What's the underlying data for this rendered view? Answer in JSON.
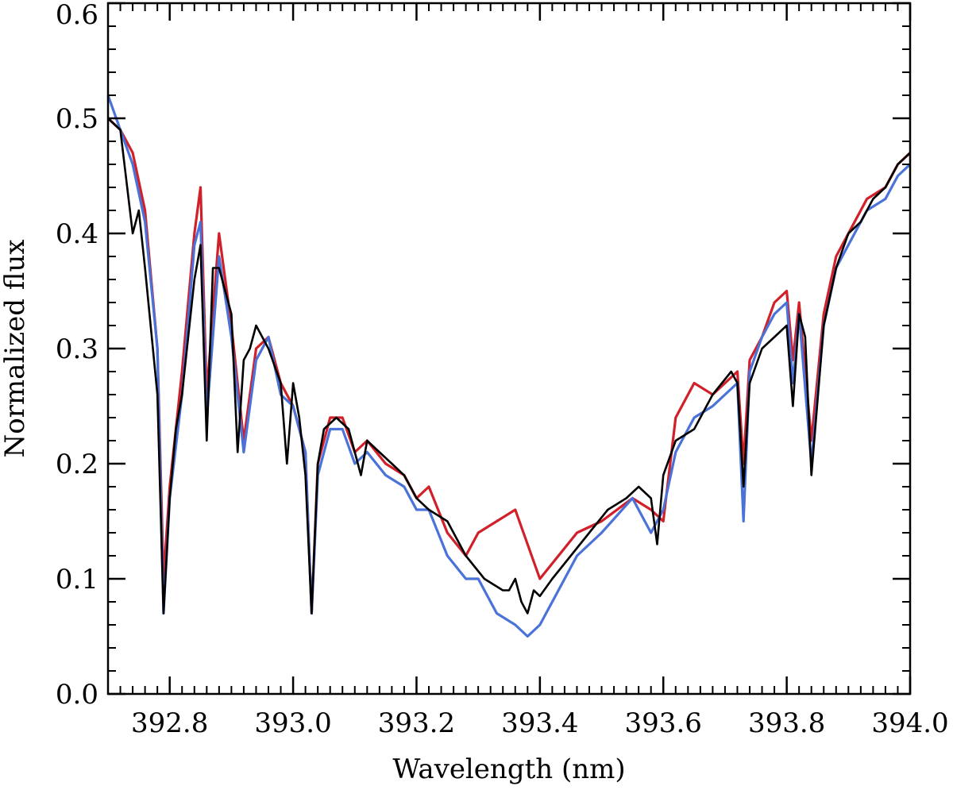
{
  "chart_data": {
    "type": "line",
    "xlabel": "Wavelength (nm)",
    "ylabel": "Normalized flux",
    "xlim": [
      392.7,
      394.0
    ],
    "ylim": [
      0.0,
      0.6
    ],
    "x_ticks": [
      "392.8",
      "393.0",
      "393.2",
      "393.4",
      "393.6",
      "393.8",
      "394.0"
    ],
    "x_tick_values": [
      392.8,
      393.0,
      393.2,
      393.4,
      393.6,
      393.8,
      394.0
    ],
    "y_ticks": [
      "0.0",
      "0.1",
      "0.2",
      "0.3",
      "0.4",
      "0.5",
      "0.6"
    ],
    "y_tick_values": [
      0.0,
      0.1,
      0.2,
      0.3,
      0.4,
      0.5,
      0.6
    ],
    "x_minor_step": 0.02,
    "y_minor_step": 0.02,
    "grid": false,
    "series": [
      {
        "color": "#d0202a",
        "style": "noisy observed spectrum",
        "x": [
          392.7,
          392.72,
          392.74,
          392.76,
          392.78,
          392.79,
          392.8,
          392.82,
          392.84,
          392.85,
          392.86,
          392.88,
          392.9,
          392.92,
          392.94,
          392.96,
          392.98,
          393.0,
          393.02,
          393.03,
          393.04,
          393.06,
          393.08,
          393.1,
          393.12,
          393.15,
          393.18,
          393.2,
          393.22,
          393.25,
          393.28,
          393.3,
          393.33,
          393.36,
          393.38,
          393.4,
          393.43,
          393.46,
          393.5,
          393.55,
          393.58,
          393.6,
          393.62,
          393.65,
          393.68,
          393.7,
          393.72,
          393.73,
          393.74,
          393.76,
          393.78,
          393.8,
          393.81,
          393.82,
          393.84,
          393.86,
          393.88,
          393.9,
          393.93,
          393.96,
          393.98,
          394.0
        ],
        "y": [
          0.5,
          0.49,
          0.47,
          0.42,
          0.3,
          0.1,
          0.18,
          0.28,
          0.4,
          0.44,
          0.26,
          0.4,
          0.32,
          0.22,
          0.3,
          0.31,
          0.27,
          0.25,
          0.21,
          0.07,
          0.2,
          0.24,
          0.24,
          0.21,
          0.22,
          0.2,
          0.19,
          0.17,
          0.18,
          0.14,
          0.12,
          0.14,
          0.15,
          0.16,
          0.13,
          0.1,
          0.12,
          0.14,
          0.15,
          0.17,
          0.16,
          0.15,
          0.24,
          0.27,
          0.26,
          0.27,
          0.28,
          0.2,
          0.29,
          0.31,
          0.34,
          0.35,
          0.29,
          0.34,
          0.22,
          0.33,
          0.38,
          0.4,
          0.43,
          0.44,
          0.46,
          0.47
        ]
      },
      {
        "color": "#4a72d8",
        "style": "noisy observed spectrum",
        "x": [
          392.7,
          392.72,
          392.74,
          392.76,
          392.78,
          392.79,
          392.8,
          392.82,
          392.84,
          392.85,
          392.86,
          392.88,
          392.9,
          392.92,
          392.94,
          392.96,
          392.98,
          393.0,
          393.02,
          393.03,
          393.04,
          393.06,
          393.08,
          393.1,
          393.12,
          393.15,
          393.18,
          393.2,
          393.22,
          393.25,
          393.28,
          393.3,
          393.33,
          393.36,
          393.38,
          393.4,
          393.43,
          393.46,
          393.5,
          393.55,
          393.58,
          393.6,
          393.62,
          393.65,
          393.68,
          393.7,
          393.72,
          393.73,
          393.74,
          393.76,
          393.78,
          393.8,
          393.81,
          393.82,
          393.84,
          393.86,
          393.88,
          393.9,
          393.93,
          393.96,
          393.98,
          394.0
        ],
        "y": [
          0.52,
          0.49,
          0.46,
          0.41,
          0.3,
          0.07,
          0.17,
          0.26,
          0.39,
          0.41,
          0.24,
          0.38,
          0.31,
          0.21,
          0.29,
          0.31,
          0.26,
          0.25,
          0.21,
          0.07,
          0.19,
          0.23,
          0.23,
          0.2,
          0.21,
          0.19,
          0.18,
          0.16,
          0.16,
          0.12,
          0.1,
          0.1,
          0.07,
          0.06,
          0.05,
          0.06,
          0.09,
          0.12,
          0.14,
          0.17,
          0.14,
          0.16,
          0.21,
          0.24,
          0.25,
          0.26,
          0.27,
          0.15,
          0.28,
          0.31,
          0.33,
          0.34,
          0.27,
          0.33,
          0.2,
          0.32,
          0.37,
          0.39,
          0.42,
          0.43,
          0.45,
          0.46
        ]
      },
      {
        "color": "#000000",
        "style": "smooth model spectrum",
        "x": [
          392.7,
          392.72,
          392.74,
          392.75,
          392.76,
          392.78,
          392.79,
          392.8,
          392.81,
          392.82,
          392.84,
          392.85,
          392.86,
          392.87,
          392.88,
          392.9,
          392.91,
          392.92,
          392.93,
          392.94,
          392.96,
          392.98,
          392.99,
          393.0,
          393.01,
          393.02,
          393.03,
          393.04,
          393.05,
          393.07,
          393.09,
          393.11,
          393.12,
          393.14,
          393.16,
          393.18,
          393.2,
          393.22,
          393.25,
          393.28,
          393.31,
          393.34,
          393.35,
          393.36,
          393.37,
          393.38,
          393.39,
          393.4,
          393.42,
          393.45,
          393.48,
          393.51,
          393.54,
          393.56,
          393.58,
          393.59,
          393.6,
          393.62,
          393.65,
          393.68,
          393.71,
          393.72,
          393.73,
          393.74,
          393.76,
          393.78,
          393.8,
          393.81,
          393.82,
          393.83,
          393.84,
          393.86,
          393.88,
          393.9,
          393.92,
          393.94,
          393.96,
          393.98,
          394.0
        ],
        "y": [
          0.5,
          0.49,
          0.4,
          0.42,
          0.37,
          0.26,
          0.07,
          0.17,
          0.23,
          0.26,
          0.36,
          0.39,
          0.22,
          0.37,
          0.37,
          0.33,
          0.21,
          0.29,
          0.3,
          0.32,
          0.3,
          0.27,
          0.2,
          0.27,
          0.24,
          0.19,
          0.07,
          0.2,
          0.23,
          0.24,
          0.23,
          0.19,
          0.22,
          0.21,
          0.2,
          0.19,
          0.17,
          0.16,
          0.15,
          0.12,
          0.1,
          0.09,
          0.09,
          0.1,
          0.08,
          0.07,
          0.09,
          0.085,
          0.1,
          0.12,
          0.14,
          0.16,
          0.17,
          0.18,
          0.17,
          0.13,
          0.19,
          0.22,
          0.23,
          0.26,
          0.28,
          0.27,
          0.18,
          0.27,
          0.3,
          0.31,
          0.32,
          0.25,
          0.33,
          0.31,
          0.19,
          0.32,
          0.37,
          0.4,
          0.41,
          0.43,
          0.44,
          0.46,
          0.47
        ]
      }
    ]
  }
}
